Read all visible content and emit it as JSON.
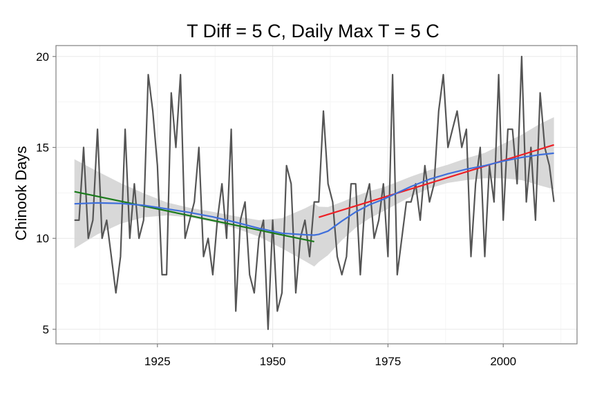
{
  "chart_data": {
    "type": "line",
    "title": "T Diff = 5 C, Daily Max T = 5 C",
    "xlabel": "",
    "ylabel": "Chinook Days",
    "xlim": [
      1903,
      2016
    ],
    "ylim": [
      4.2,
      20.6
    ],
    "x_ticks": [
      "1925",
      "1950",
      "1975",
      "2000"
    ],
    "y_ticks": [
      "5",
      "10",
      "15",
      "20"
    ],
    "grid": true,
    "legend": "none",
    "colors": {
      "panel_background": "#ffffff",
      "panel_border": "#7f7f7f",
      "grid_major": "#ebebeb",
      "grid_minor": "#f5f5f5",
      "observed": "#555555",
      "ribbon": "#d4d4d4",
      "fit_early": "#1a7a1a",
      "fit_late": "#ee1f25",
      "smooth": "#3f6fdb"
    },
    "series": [
      {
        "type": "line",
        "x": [
          1907,
          1908,
          1909,
          1910,
          1911,
          1912,
          1913,
          1914,
          1915,
          1916,
          1917,
          1918,
          1919,
          1920,
          1921,
          1922,
          1923,
          1924,
          1925,
          1926,
          1927,
          1928,
          1929,
          1930,
          1931,
          1932,
          1933,
          1934,
          1935,
          1936,
          1937,
          1938,
          1939,
          1940,
          1941,
          1942,
          1943,
          1944,
          1945,
          1946,
          1947,
          1948,
          1949,
          1950,
          1951,
          1952,
          1953,
          1954,
          1955,
          1956,
          1957,
          1958,
          1959,
          1960,
          1961,
          1962,
          1963,
          1964,
          1965,
          1966,
          1967,
          1968,
          1969,
          1970,
          1971,
          1972,
          1973,
          1974,
          1975,
          1976,
          1977,
          1978,
          1979,
          1980,
          1981,
          1982,
          1983,
          1984,
          1985,
          1986,
          1987,
          1988,
          1989,
          1990,
          1991,
          1992,
          1993,
          1994,
          1995,
          1996,
          1997,
          1998,
          1999,
          2000,
          2001,
          2002,
          2003,
          2004,
          2005,
          2006,
          2007,
          2008,
          2009,
          2010,
          2011
        ],
        "y": [
          11,
          11,
          15,
          10,
          11,
          16,
          10,
          11,
          9,
          7,
          9,
          16,
          10,
          13,
          10,
          11,
          19,
          17,
          14,
          8,
          8,
          18,
          15,
          19,
          10,
          11,
          12,
          15,
          9,
          10,
          8,
          11,
          13,
          10,
          16,
          6,
          11,
          12,
          8,
          7,
          10,
          11,
          5,
          11,
          6,
          7,
          14,
          13,
          7,
          10,
          11,
          9,
          12,
          12,
          17,
          13,
          12,
          9,
          8,
          9,
          13,
          13,
          8,
          12,
          13,
          10,
          11,
          13,
          9,
          19,
          8,
          10,
          12,
          12,
          13,
          11,
          14,
          12,
          13,
          17,
          19,
          15,
          16,
          17,
          15,
          16,
          9,
          13,
          15,
          9,
          14,
          12,
          19,
          11,
          16,
          16,
          13,
          20,
          12,
          15,
          11,
          18,
          15,
          14,
          12
        ]
      },
      {
        "type": "line",
        "x": [
          1907,
          1959
        ],
        "y": [
          12.57,
          9.82
        ]
      },
      {
        "type": "line",
        "x": [
          1960,
          2011
        ],
        "y": [
          11.16,
          15.14
        ]
      },
      {
        "type": "smooth",
        "x": [
          1907,
          1912,
          1917,
          1922,
          1927,
          1932,
          1937,
          1942,
          1947,
          1952,
          1957,
          1959,
          1960,
          1962,
          1965,
          1968,
          1971,
          1974,
          1977,
          1980,
          1984,
          1988,
          1992,
          1996,
          2000,
          2004,
          2008,
          2011
        ],
        "y": [
          11.9,
          11.95,
          11.92,
          11.82,
          11.62,
          11.42,
          11.18,
          10.88,
          10.55,
          10.28,
          10.2,
          10.18,
          10.22,
          10.4,
          10.95,
          11.45,
          11.85,
          12.15,
          12.5,
          12.85,
          13.25,
          13.55,
          13.8,
          14.0,
          14.25,
          14.45,
          14.6,
          14.68
        ],
        "ribbon_lower": [
          9.45,
          10.22,
          10.8,
          11.16,
          11.26,
          11.16,
          10.9,
          10.55,
          10.1,
          9.45,
          8.75,
          8.45,
          8.7,
          9.08,
          9.9,
          10.58,
          11.1,
          11.49,
          11.9,
          12.3,
          12.75,
          13.05,
          13.2,
          13.3,
          13.3,
          13.2,
          12.9,
          12.7
        ],
        "ribbon_upper": [
          14.35,
          13.68,
          13.04,
          12.48,
          11.98,
          11.68,
          11.46,
          11.21,
          11.0,
          11.11,
          11.65,
          11.91,
          11.74,
          11.72,
          12.0,
          12.32,
          12.6,
          12.81,
          13.1,
          13.4,
          13.75,
          14.05,
          14.4,
          14.7,
          15.2,
          15.7,
          16.3,
          16.66
        ]
      }
    ]
  }
}
